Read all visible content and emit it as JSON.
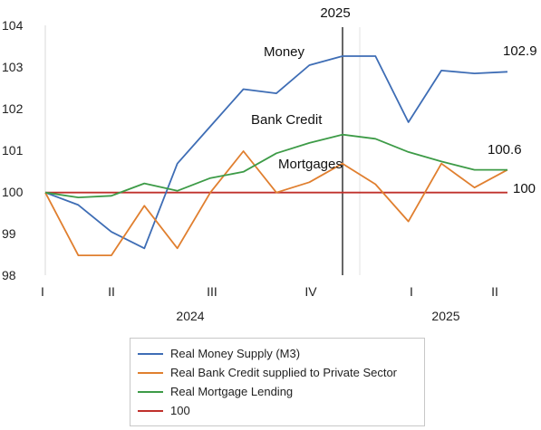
{
  "chart_data": {
    "type": "line",
    "x_ticks": [
      "I",
      "II",
      "III",
      "IV",
      "I",
      "II"
    ],
    "year_labels": [
      "2024",
      "2025"
    ],
    "ylim": [
      98,
      104
    ],
    "yticks": [
      "98",
      "99",
      "100",
      "101",
      "102",
      "103",
      "104"
    ],
    "grid": false,
    "series": [
      {
        "name": "Real Money Supply (M3)",
        "color": "#3e6db5",
        "values": [
          100.0,
          99.7,
          99.05,
          98.65,
          100.7,
          101.6,
          102.5,
          102.4,
          103.08,
          103.3,
          103.3,
          101.7,
          102.95,
          102.88,
          102.92
        ]
      },
      {
        "name": "Real Bank Credit supplied to Private Sector",
        "color": "#e07f2f",
        "values": [
          100.0,
          98.48,
          98.48,
          99.68,
          98.65,
          100.0,
          101.0,
          100.0,
          100.25,
          100.7,
          100.2,
          99.3,
          100.7,
          100.12,
          100.55
        ]
      },
      {
        "name": "Real Mortgage Lending",
        "color": "#3d9b47",
        "values": [
          100.0,
          99.88,
          99.92,
          100.22,
          100.04,
          100.35,
          100.5,
          100.95,
          101.2,
          101.4,
          101.3,
          100.98,
          100.75,
          100.55,
          100.55
        ]
      },
      {
        "name": "100",
        "color": "#c0302b",
        "values": [
          100,
          100,
          100,
          100,
          100,
          100,
          100,
          100,
          100,
          100,
          100,
          100,
          100,
          100,
          100
        ]
      }
    ],
    "annotations": {
      "money": "Money",
      "bank_credit": "Bank Credit",
      "mortgages": "Mortgages",
      "marker_year": "2025",
      "end_money": "102.9",
      "end_credit": "100.6",
      "end_100": "100"
    }
  },
  "legend": [
    {
      "label": "Real Money Supply (M3)",
      "color": "#3e6db5"
    },
    {
      "label": "Real Bank Credit supplied to Private Sector",
      "color": "#e07f2f"
    },
    {
      "label": "Real Mortgage Lending",
      "color": "#3d9b47"
    },
    {
      "label": "100",
      "color": "#c0302b"
    }
  ]
}
